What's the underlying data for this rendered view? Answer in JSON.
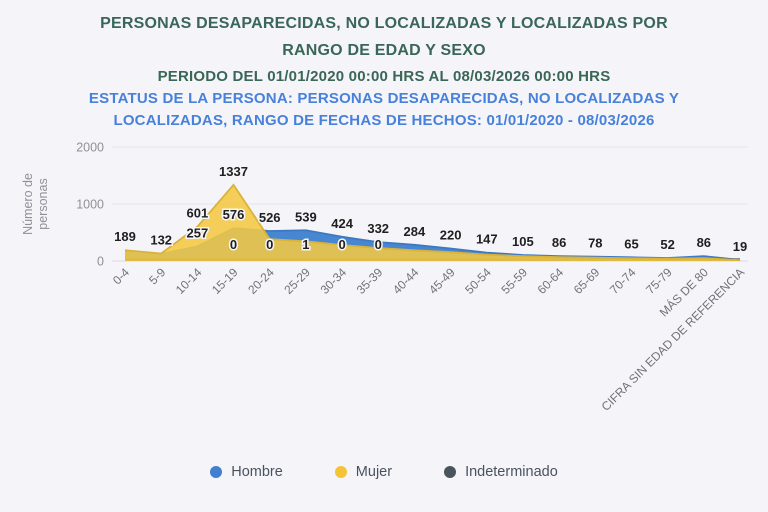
{
  "header": {
    "title": "PERSONAS DESAPARECIDAS, NO LOCALIZADAS Y LOCALIZADAS POR RANGO DE EDAD Y SEXO",
    "period": "PERIODO DEL 01/01/2020 00:00 HRS AL 08/03/2026 00:00 HRS",
    "status": "ESTATUS DE LA PERSONA: PERSONAS DESAPARECIDAS, NO LOCALIZADAS Y LOCALIZADAS, RANGO DE FECHAS DE HECHOS: 01/01/2020 - 08/03/2026"
  },
  "colors": {
    "title_green": "#3A6657",
    "status_blue": "#4781DB",
    "background": "#F5F5F9",
    "grid": "#E3E3E9",
    "axis_line": "#D9D9DF"
  },
  "chart_data": {
    "type": "area",
    "title": "",
    "xlabel": "",
    "ylabel": "Número de personas",
    "ylim": [
      0,
      2000
    ],
    "yticks": [
      0,
      1000,
      2000
    ],
    "grid": true,
    "legend_position": "bottom",
    "categories": [
      "0-4",
      "5-9",
      "10-14",
      "15-19",
      "20-24",
      "25-29",
      "30-34",
      "35-39",
      "40-44",
      "45-49",
      "50-54",
      "55-59",
      "60-64",
      "65-69",
      "70-74",
      "75-79",
      "MÁS DE 80",
      "CIFRA SIN EDAD DE REFERENCIA"
    ],
    "series": [
      {
        "name": "Hombre",
        "color": "#4787D1",
        "line_color": "#3D79C3",
        "values": [
          180,
          125,
          257,
          576,
          526,
          539,
          424,
          332,
          284,
          220,
          147,
          105,
          86,
          78,
          65,
          52,
          86,
          19
        ],
        "point_labels": [
          null,
          null,
          257,
          576,
          526,
          539,
          424,
          332,
          284,
          220,
          147,
          105,
          86,
          78,
          65,
          52,
          86,
          19
        ]
      },
      {
        "name": "Mujer",
        "color": "#F5C842",
        "line_color": "#D9B23A",
        "values": [
          189,
          132,
          601,
          1337,
          385,
          345,
          280,
          228,
          188,
          155,
          112,
          85,
          68,
          58,
          48,
          42,
          50,
          14
        ],
        "point_labels": [
          189,
          132,
          601,
          1337,
          null,
          null,
          null,
          null,
          null,
          null,
          null,
          null,
          null,
          null,
          null,
          null,
          null,
          null
        ]
      },
      {
        "name": "Indeterminado",
        "color": "#4A545C",
        "line_color": "#4F5852",
        "values": [
          0,
          0,
          0,
          0,
          0,
          1,
          0,
          0,
          0,
          0,
          0,
          0,
          0,
          0,
          0,
          0,
          0,
          0
        ],
        "point_labels": [
          null,
          null,
          null,
          0,
          0,
          1,
          0,
          0,
          null,
          null,
          null,
          null,
          null,
          null,
          null,
          null,
          null,
          null
        ]
      }
    ]
  },
  "legend": {
    "items": [
      {
        "label": "Hombre",
        "color": "#4080CE"
      },
      {
        "label": "Mujer",
        "color": "#F5C336"
      },
      {
        "label": "Indeterminado",
        "color": "#4A545C"
      }
    ]
  }
}
